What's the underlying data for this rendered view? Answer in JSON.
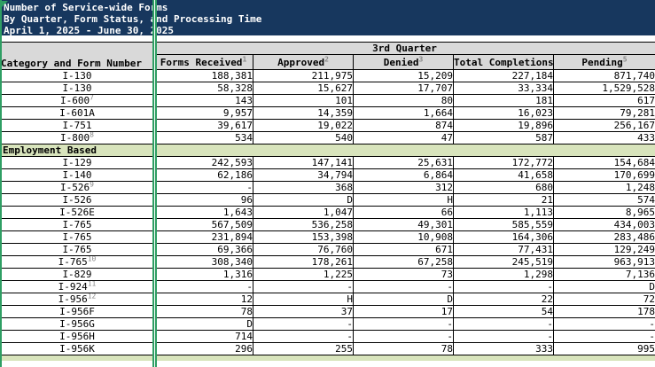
{
  "title": {
    "line1": "Number of Service-wide Forms",
    "line2": "By Quarter, Form Status, and Processing Time",
    "line3": "April 1, 2025 - June 30, 2025"
  },
  "header": {
    "quarter_label": "3rd Quarter",
    "category_column_label": "Category and Form Number",
    "columns": [
      {
        "label": "Forms Received",
        "sup": "1"
      },
      {
        "label": "Approved",
        "sup": "2"
      },
      {
        "label": "Denied",
        "sup": "3"
      },
      {
        "label": "Total Completions",
        "sup": "4"
      },
      {
        "label": "Pending",
        "sup": "5"
      }
    ]
  },
  "sections": [
    {
      "label": "",
      "rows": [
        {
          "form": "I-130",
          "sup": "",
          "values": [
            "188,381",
            "211,975",
            "15,209",
            "227,184",
            "871,740"
          ]
        },
        {
          "form": "I-130",
          "sup": "",
          "values": [
            "58,328",
            "15,627",
            "17,707",
            "33,334",
            "1,529,528"
          ]
        },
        {
          "form": "I-600",
          "sup": "7",
          "values": [
            "143",
            "101",
            "80",
            "181",
            "617"
          ]
        },
        {
          "form": "I-601A",
          "sup": "",
          "values": [
            "9,957",
            "14,359",
            "1,664",
            "16,023",
            "79,281"
          ]
        },
        {
          "form": "I-751",
          "sup": "",
          "values": [
            "39,617",
            "19,022",
            "874",
            "19,896",
            "256,167"
          ]
        },
        {
          "form": "I-800",
          "sup": "8",
          "values": [
            "534",
            "540",
            "47",
            "587",
            "433"
          ]
        }
      ]
    },
    {
      "label": "Employment Based",
      "rows": [
        {
          "form": "I-129",
          "sup": "",
          "values": [
            "242,593",
            "147,141",
            "25,631",
            "172,772",
            "154,684"
          ]
        },
        {
          "form": "I-140",
          "sup": "",
          "values": [
            "62,186",
            "34,794",
            "6,864",
            "41,658",
            "170,699"
          ]
        },
        {
          "form": "I-526",
          "sup": "9",
          "values": [
            "-",
            "368",
            "312",
            "680",
            "1,248"
          ]
        },
        {
          "form": "I-526",
          "sup": "",
          "values": [
            "96",
            "D",
            "H",
            "21",
            "574"
          ]
        },
        {
          "form": "I-526E",
          "sup": "",
          "values": [
            "1,643",
            "1,047",
            "66",
            "1,113",
            "8,965"
          ]
        },
        {
          "form": "I-765",
          "sup": "",
          "values": [
            "567,509",
            "536,258",
            "49,301",
            "585,559",
            "434,003"
          ]
        },
        {
          "form": "I-765",
          "sup": "",
          "values": [
            "231,894",
            "153,398",
            "10,908",
            "164,306",
            "283,486"
          ]
        },
        {
          "form": "I-765",
          "sup": "",
          "values": [
            "69,366",
            "76,760",
            "671",
            "77,431",
            "129,249"
          ]
        },
        {
          "form": "I-765",
          "sup": "10",
          "values": [
            "308,340",
            "178,261",
            "67,258",
            "245,519",
            "963,913"
          ]
        },
        {
          "form": "I-829",
          "sup": "",
          "values": [
            "1,316",
            "1,225",
            "73",
            "1,298",
            "7,136"
          ]
        },
        {
          "form": "I-924",
          "sup": "11",
          "values": [
            "-",
            "-",
            "-",
            "-",
            "D"
          ]
        },
        {
          "form": "I-956",
          "sup": "12",
          "values": [
            "12",
            "H",
            "D",
            "22",
            "72"
          ]
        },
        {
          "form": "I-956F",
          "sup": "",
          "values": [
            "78",
            "37",
            "17",
            "54",
            "178"
          ]
        },
        {
          "form": "I-956G",
          "sup": "",
          "values": [
            "D",
            "-",
            "-",
            "-",
            "-"
          ]
        },
        {
          "form": "I-956H",
          "sup": "",
          "values": [
            "714",
            "-",
            "-",
            "-",
            "-"
          ]
        },
        {
          "form": "I-956K",
          "sup": "",
          "values": [
            "296",
            "255",
            "78",
            "333",
            "995"
          ]
        }
      ]
    }
  ],
  "colors": {
    "title_bg": "#17375E",
    "header_bg": "#D9D9D9",
    "section_bg": "#D8E4BC",
    "print_area_border": "#2E9E63",
    "grid_line": "#000000"
  }
}
